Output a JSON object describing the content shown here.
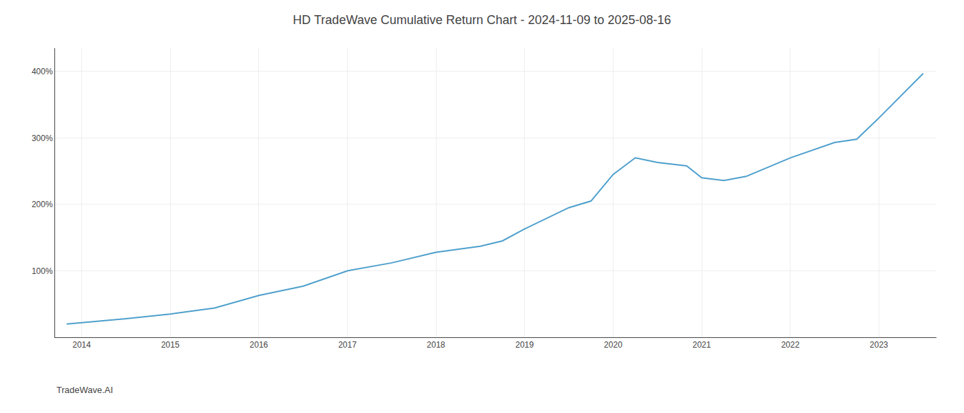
{
  "chart_data": {
    "type": "line",
    "title": "HD TradeWave Cumulative Return Chart - 2024-11-09 to 2025-08-16",
    "annotations": [
      "TradeWave.AI"
    ],
    "x": [
      2013.83,
      2014.0,
      2014.5,
      2015.0,
      2015.5,
      2016.0,
      2016.5,
      2017.0,
      2017.5,
      2018.0,
      2018.5,
      2018.75,
      2019.0,
      2019.5,
      2019.75,
      2020.0,
      2020.25,
      2020.5,
      2020.83,
      2021.0,
      2021.25,
      2021.5,
      2022.0,
      2022.5,
      2022.75,
      2023.0,
      2023.5
    ],
    "values": [
      20,
      22,
      28,
      35,
      44,
      63,
      77,
      100,
      112,
      128,
      137,
      145,
      163,
      195,
      205,
      245,
      270,
      263,
      258,
      240,
      236,
      242,
      270,
      293,
      298,
      330,
      397
    ],
    "color": "#4d9fcc",
    "xlim": [
      2013.7,
      2023.65
    ],
    "xticks": [
      2014,
      2015,
      2016,
      2017,
      2018,
      2019,
      2020,
      2021,
      2022,
      2023
    ],
    "ylim": [
      0,
      435
    ],
    "yticks": [
      {
        "value": 100,
        "label": "100%"
      },
      {
        "value": 200,
        "label": "200%"
      },
      {
        "value": 300,
        "label": "300%"
      },
      {
        "value": 400,
        "label": "400%"
      }
    ],
    "grid": true
  }
}
